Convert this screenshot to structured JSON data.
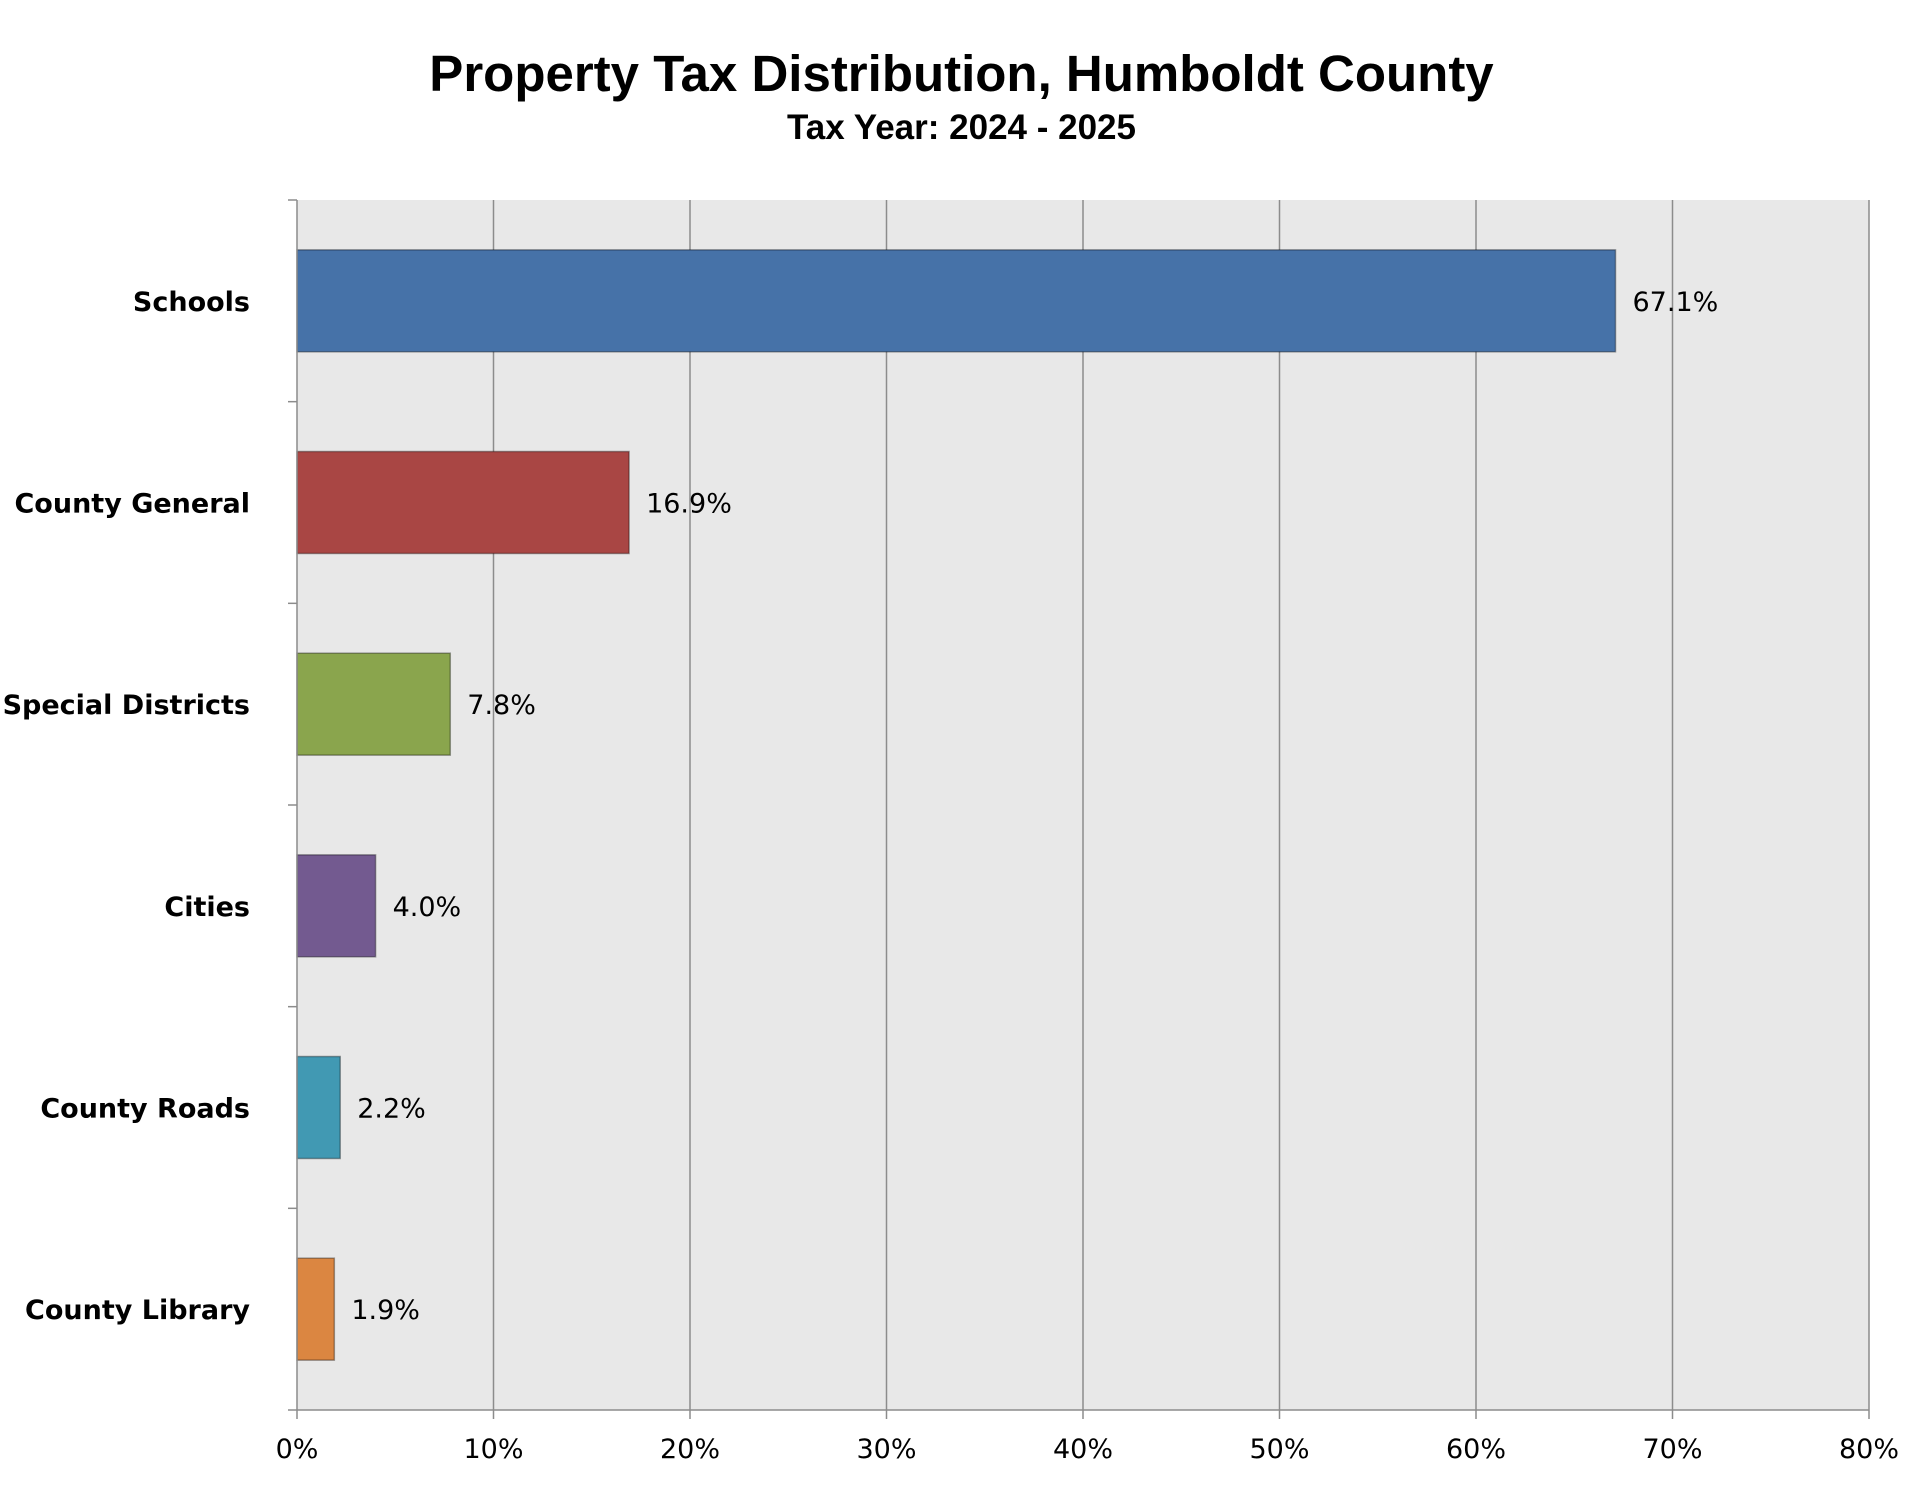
{
  "chart_data": {
    "type": "bar",
    "orientation": "horizontal",
    "title": "Property Tax Distribution, Humboldt County",
    "subtitle": "Tax Year: 2024 - 2025",
    "categories": [
      "Schools",
      "County General",
      "Special Districts",
      "Cities",
      "County Roads",
      "County Library"
    ],
    "values": [
      67.1,
      16.9,
      7.8,
      4.0,
      2.2,
      1.9
    ],
    "value_labels": [
      "67.1%",
      "16.9%",
      "7.8%",
      "4.0%",
      "2.2%",
      "1.9%"
    ],
    "colors": [
      "#4672A8",
      "#A94644",
      "#8AA54D",
      "#735A90",
      "#4199B3",
      "#DB8641"
    ],
    "xlim": [
      0,
      80
    ],
    "x_ticks": [
      0,
      10,
      20,
      30,
      40,
      50,
      60,
      70,
      80
    ],
    "x_tick_labels": [
      "0%",
      "10%",
      "20%",
      "30%",
      "40%",
      "50%",
      "60%",
      "70%",
      "80%"
    ],
    "xlabel": "",
    "ylabel": "",
    "grid": "vertical",
    "plot_background": "#E8E8E8",
    "legend": "none"
  }
}
